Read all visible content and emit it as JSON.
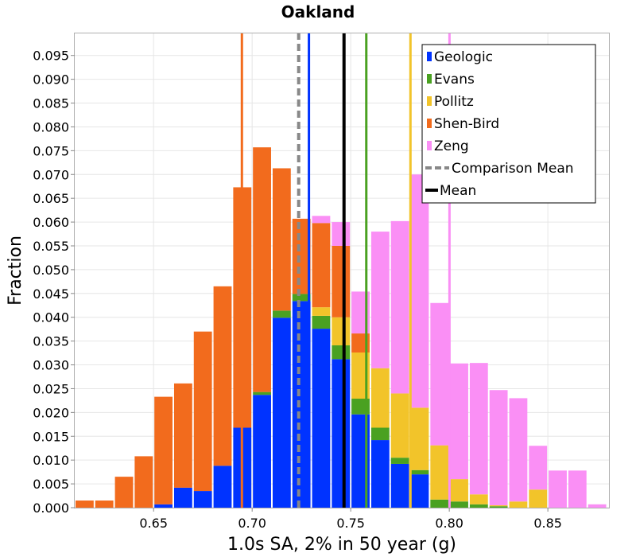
{
  "chart_data": {
    "type": "bar",
    "stacked": true,
    "title": "Oakland",
    "xlabel": "1.0s SA, 2% in 50 year (g)",
    "ylabel": "Fraction",
    "xlim": [
      0.61,
      0.881
    ],
    "ylim": [
      0.0,
      0.0998
    ],
    "bin_width": 0.01,
    "x_ticks": [
      0.65,
      0.7,
      0.75,
      0.8,
      0.85
    ],
    "x_tick_labels": [
      "0.65",
      "0.70",
      "0.75",
      "0.80",
      "0.85"
    ],
    "y_ticks": [
      0.0,
      0.005,
      0.01,
      0.015,
      0.02,
      0.025,
      0.03,
      0.035,
      0.04,
      0.045,
      0.05,
      0.055,
      0.06,
      0.065,
      0.07,
      0.075,
      0.08,
      0.085,
      0.09,
      0.095
    ],
    "y_tick_labels": [
      "0.000",
      "0.005",
      "0.010",
      "0.015",
      "0.020",
      "0.025",
      "0.030",
      "0.035",
      "0.040",
      "0.045",
      "0.050",
      "0.055",
      "0.060",
      "0.065",
      "0.070",
      "0.075",
      "0.080",
      "0.085",
      "0.090",
      "0.095"
    ],
    "x": [
      0.615,
      0.625,
      0.635,
      0.645,
      0.655,
      0.665,
      0.675,
      0.685,
      0.695,
      0.705,
      0.715,
      0.725,
      0.735,
      0.745,
      0.755,
      0.765,
      0.775,
      0.785,
      0.795,
      0.805,
      0.815,
      0.825,
      0.835,
      0.845,
      0.855,
      0.865,
      0.875
    ],
    "series": [
      {
        "name": "Geologic",
        "color": "#0033ff",
        "values": [
          0,
          0,
          0,
          0,
          0.0007,
          0.0042,
          0.0035,
          0.0088,
          0.0168,
          0.0237,
          0.0399,
          0.0434,
          0.0376,
          0.0312,
          0.0196,
          0.0142,
          0.0092,
          0.007,
          0,
          0,
          0,
          0,
          0,
          0,
          0,
          0,
          0
        ]
      },
      {
        "name": "Evans",
        "color": "#4aa121",
        "values": [
          0,
          0,
          0,
          0,
          0,
          0,
          0,
          0,
          0,
          0.0006,
          0.0015,
          0.0015,
          0.0027,
          0.0029,
          0.0033,
          0.0026,
          0.0013,
          0.0009,
          0.0017,
          0.0013,
          0.0007,
          0.0003,
          0,
          0,
          0,
          0,
          0
        ]
      },
      {
        "name": "Pollitz",
        "color": "#f2c42a",
        "values": [
          0,
          0,
          0,
          0,
          0,
          0,
          0,
          0,
          0,
          0,
          0,
          0,
          0.0018,
          0.0059,
          0.0097,
          0.0125,
          0.0135,
          0.0131,
          0.0114,
          0.0047,
          0.0021,
          0.0002,
          0.0013,
          0.0038,
          0,
          0,
          0
        ]
      },
      {
        "name": "Shen-Bird",
        "color": "#f26b1d",
        "values": [
          0.0015,
          0.0015,
          0.0065,
          0.0108,
          0.0226,
          0.0219,
          0.0335,
          0.0377,
          0.0505,
          0.0514,
          0.0299,
          0.0158,
          0.0177,
          0.015,
          0.004,
          0,
          0,
          0,
          0,
          0,
          0,
          0,
          0,
          0,
          0,
          0,
          0
        ]
      },
      {
        "name": "Zeng",
        "color": "#fa8ff5",
        "values": [
          0,
          0,
          0,
          0,
          0,
          0,
          0,
          0,
          0,
          0,
          0,
          0,
          0.0015,
          0.005,
          0.0088,
          0.0287,
          0.0362,
          0.049,
          0.0299,
          0.0243,
          0.0276,
          0.0242,
          0.0217,
          0.0092,
          0.0078,
          0.0078,
          0.0007
        ]
      }
    ],
    "vlines": [
      {
        "name": "Shen-Bird",
        "x": 0.6948,
        "color": "#f26b1d",
        "style": "solid"
      },
      {
        "name": "Comparison Mean",
        "x": 0.7236,
        "color": "#888888",
        "style": "dashed"
      },
      {
        "name": "Geologic",
        "x": 0.7288,
        "color": "#0033ff",
        "style": "solid"
      },
      {
        "name": "Mean",
        "x": 0.7466,
        "color": "#000000",
        "style": "solid"
      },
      {
        "name": "Evans",
        "x": 0.7579,
        "color": "#4aa121",
        "style": "solid"
      },
      {
        "name": "Pollitz",
        "x": 0.7803,
        "color": "#f2c42a",
        "style": "solid"
      },
      {
        "name": "Zeng",
        "x": 0.8001,
        "color": "#fa8ff5",
        "style": "solid"
      }
    ],
    "legend": {
      "position": "top-right",
      "entries": [
        {
          "label": "Geologic",
          "color": "#0033ff",
          "kind": "bar"
        },
        {
          "label": "Evans",
          "color": "#4aa121",
          "kind": "bar"
        },
        {
          "label": "Pollitz",
          "color": "#f2c42a",
          "kind": "bar"
        },
        {
          "label": "Shen-Bird",
          "color": "#f26b1d",
          "kind": "bar"
        },
        {
          "label": "Zeng",
          "color": "#fa8ff5",
          "kind": "bar"
        },
        {
          "label": "Comparison Mean",
          "color": "#888888",
          "kind": "dashed-line"
        },
        {
          "label": "Mean",
          "color": "#000000",
          "kind": "line"
        }
      ]
    },
    "grid": true
  }
}
